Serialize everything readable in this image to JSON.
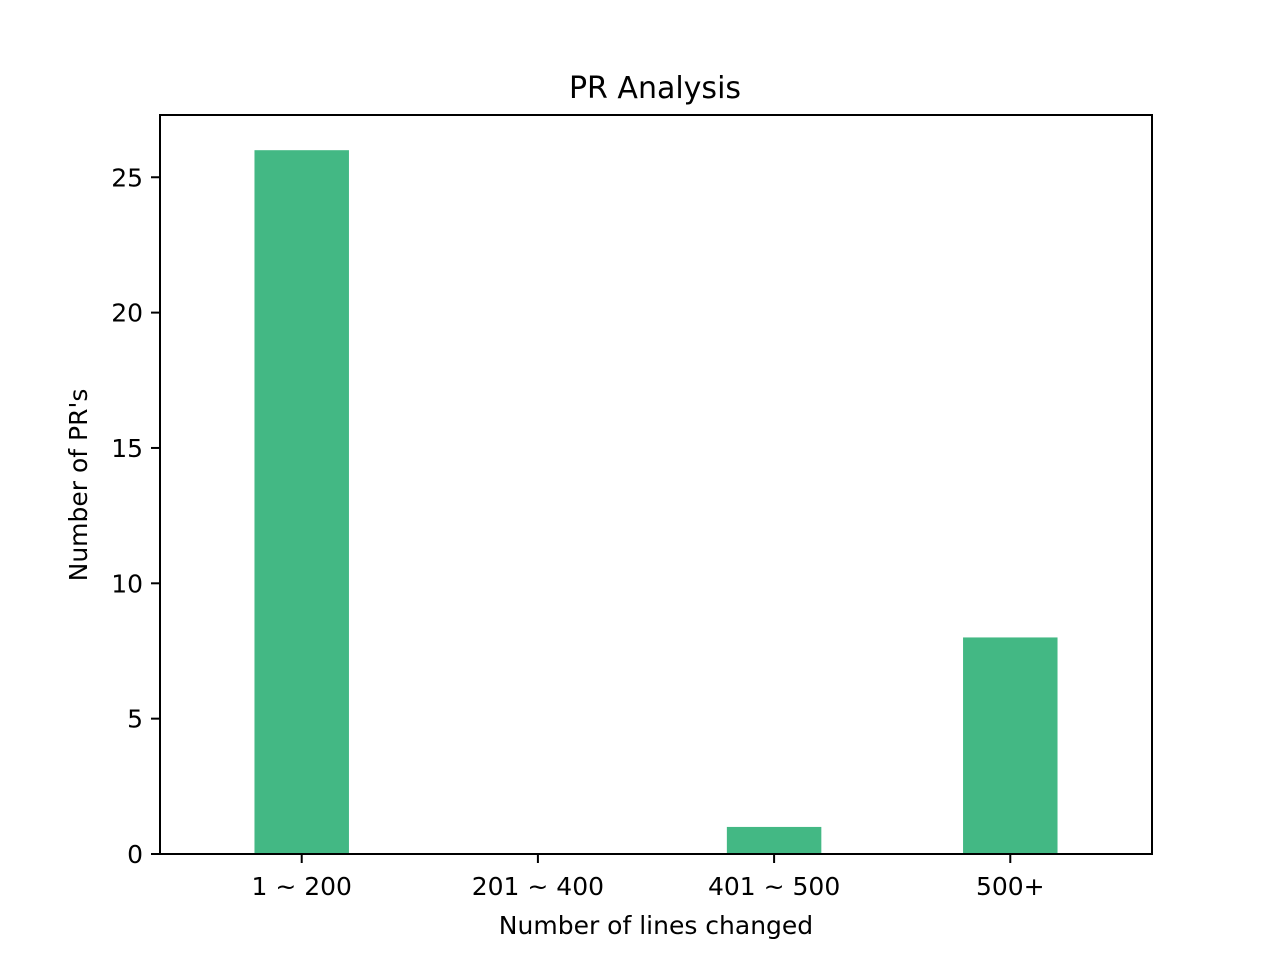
{
  "chart_data": {
    "type": "bar",
    "title": "PR Analysis",
    "xlabel": "Number of lines changed",
    "ylabel": "Number of PR's",
    "categories": [
      "1 ~ 200",
      "201 ~ 400",
      "401 ~ 500",
      "500+"
    ],
    "values": [
      26,
      0,
      1,
      8
    ],
    "ylim": [
      0,
      27.3
    ],
    "yticks": [
      0,
      5,
      10,
      15,
      20,
      25
    ],
    "grid": false,
    "bar_color": "#43b884"
  }
}
